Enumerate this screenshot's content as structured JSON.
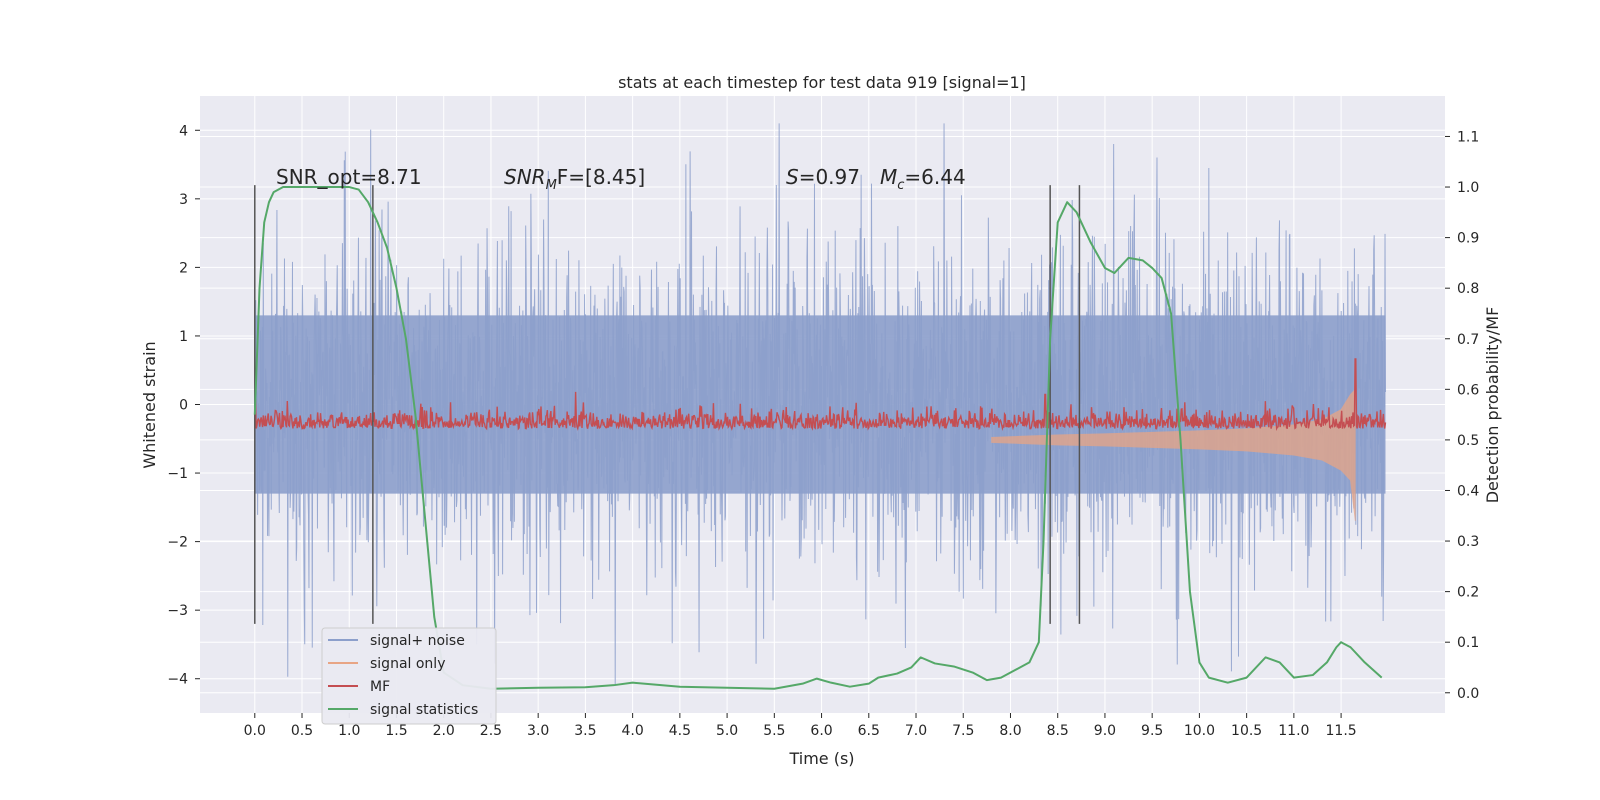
{
  "chart_data": {
    "type": "line",
    "title": "stats at each timestep for test data 919 [signal=1]",
    "xlabel": "Time (s)",
    "ylabel": "Whitened strain",
    "y2label": "Detection probability/MF",
    "xlim": [
      -0.58,
      12.6
    ],
    "ylim": [
      -4.5,
      4.5
    ],
    "y2lim": [
      -0.04,
      1.18
    ],
    "grid": true,
    "legend_position": "lower-left",
    "x_ticks": [
      "0.0",
      "0.5",
      "1.0",
      "1.5",
      "2.0",
      "2.5",
      "3.0",
      "3.5",
      "4.0",
      "4.5",
      "5.0",
      "5.5",
      "6.0",
      "6.5",
      "7.0",
      "7.5",
      "8.0",
      "8.5",
      "9.0",
      "9.5",
      "10.0",
      "10.5",
      "11.0",
      "11.5"
    ],
    "y_ticks": [
      "4",
      "3",
      "2",
      "1",
      "0",
      "−1",
      "−2",
      "−3",
      "−4"
    ],
    "y2_ticks": [
      "1.1",
      "1.0",
      "0.9",
      "0.8",
      "0.7",
      "0.6",
      "0.5",
      "0.4",
      "0.3",
      "0.2",
      "0.1",
      "0.0"
    ],
    "annotations": {
      "snr_opt": "SNR_opt=8.71",
      "snr_mf_name": "SNR",
      "snr_mf_sub": "M",
      "snr_mf_rest": "F=[8.45]",
      "s_name": "S",
      "s_rest": "=0.97",
      "mc_name": "M",
      "mc_sub": "c",
      "mc_rest": "=6.44"
    },
    "vertical_markers_s": [
      0.0,
      1.25,
      8.42,
      8.73
    ],
    "series": [
      {
        "name": "signal+ noise",
        "color": "#8c9fcb",
        "axis": "left",
        "x_range": [
          0.0,
          11.97
        ],
        "band_1sigma": [
          -1.3,
          1.3
        ],
        "peak_approx": 4.1,
        "trough_approx": -4.1
      },
      {
        "name": "signal only",
        "color": "#e8a585",
        "axis": "right",
        "x": [
          7.8,
          8.5,
          9.0,
          9.5,
          10.0,
          10.5,
          11.0,
          11.3,
          11.5,
          11.6,
          11.65
        ],
        "upper": [
          0.505,
          0.51,
          0.512,
          0.515,
          0.518,
          0.522,
          0.53,
          0.54,
          0.56,
          0.59,
          0.6
        ],
        "lower": [
          0.495,
          0.49,
          0.488,
          0.485,
          0.482,
          0.478,
          0.47,
          0.46,
          0.44,
          0.42,
          0.34
        ]
      },
      {
        "name": "MF",
        "color": "#c44e52",
        "axis": "right",
        "x_range": [
          0.0,
          11.97
        ],
        "base": 0.5,
        "mean": 0.53,
        "spikes": [
          [
            0.0,
            0.58
          ],
          [
            8.37,
            0.59
          ],
          [
            11.65,
            0.66
          ],
          [
            11.8,
            0.55
          ]
        ]
      },
      {
        "name": "signal statistics",
        "color": "#55a868",
        "axis": "right",
        "x": [
          0.0,
          0.05,
          0.1,
          0.15,
          0.2,
          0.3,
          0.5,
          0.8,
          1.0,
          1.1,
          1.2,
          1.3,
          1.4,
          1.5,
          1.6,
          1.7,
          1.8,
          1.9,
          2.0,
          2.2,
          2.5,
          3.0,
          3.5,
          3.8,
          4.0,
          4.5,
          5.0,
          5.5,
          5.8,
          5.95,
          6.1,
          6.3,
          6.5,
          6.6,
          6.8,
          6.95,
          7.05,
          7.2,
          7.4,
          7.6,
          7.75,
          7.9,
          8.05,
          8.2,
          8.3,
          8.35,
          8.42,
          8.5,
          8.6,
          8.7,
          8.85,
          9.0,
          9.1,
          9.25,
          9.4,
          9.5,
          9.6,
          9.7,
          9.8,
          9.9,
          10.0,
          10.1,
          10.3,
          10.5,
          10.7,
          10.85,
          11.0,
          11.2,
          11.35,
          11.45,
          11.5,
          11.6,
          11.75,
          11.93
        ],
        "y": [
          0.55,
          0.8,
          0.93,
          0.97,
          0.99,
          1.0,
          1.0,
          1.0,
          1.0,
          0.995,
          0.97,
          0.93,
          0.88,
          0.8,
          0.7,
          0.55,
          0.35,
          0.15,
          0.04,
          0.015,
          0.008,
          0.01,
          0.011,
          0.015,
          0.02,
          0.012,
          0.01,
          0.008,
          0.018,
          0.028,
          0.02,
          0.012,
          0.018,
          0.03,
          0.038,
          0.05,
          0.07,
          0.058,
          0.052,
          0.04,
          0.025,
          0.03,
          0.045,
          0.06,
          0.1,
          0.3,
          0.7,
          0.93,
          0.97,
          0.95,
          0.89,
          0.84,
          0.83,
          0.86,
          0.855,
          0.84,
          0.82,
          0.75,
          0.5,
          0.2,
          0.06,
          0.03,
          0.02,
          0.03,
          0.07,
          0.06,
          0.03,
          0.035,
          0.06,
          0.09,
          0.1,
          0.09,
          0.06,
          0.03
        ]
      }
    ]
  }
}
